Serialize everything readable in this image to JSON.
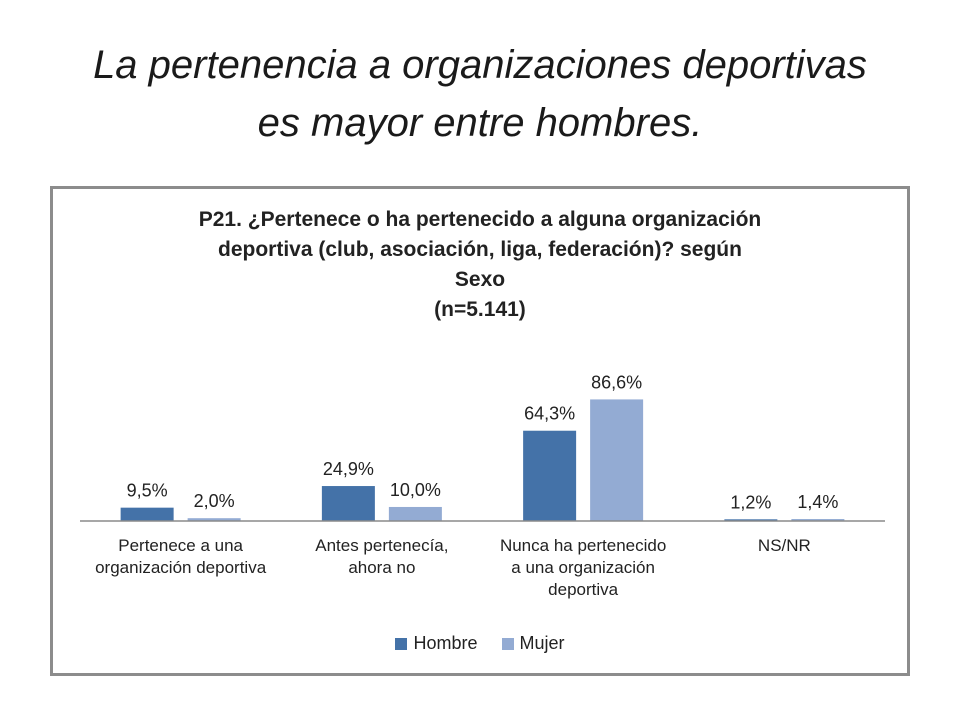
{
  "slide": {
    "title_line1": "La pertenencia a organizaciones deportivas",
    "title_line2": "es mayor entre hombres."
  },
  "chart_data": {
    "type": "bar",
    "title_lines": [
      "P21. ¿Pertenece o ha pertenecido a alguna organización",
      "deportiva (club, asociación, liga, federación)? según",
      "Sexo",
      "(n=5.141)"
    ],
    "categories": [
      [
        "Pertenece a una",
        "organización deportiva"
      ],
      [
        "Antes pertenecía,",
        "ahora no"
      ],
      [
        "Nunca ha pertenecido",
        "a una organización",
        "deportiva"
      ],
      [
        "NS/NR"
      ]
    ],
    "series": [
      {
        "name": "Hombre",
        "color": "#4472a8",
        "values": [
          9.5,
          24.9,
          64.3,
          1.2
        ],
        "labels": [
          "9,5%",
          "24,9%",
          "64,3%",
          "1,2%"
        ]
      },
      {
        "name": "Mujer",
        "color": "#93abd3",
        "values": [
          2.0,
          10.0,
          86.6,
          1.4
        ],
        "labels": [
          "2,0%",
          "10,0%",
          "86,6%",
          "1,4%"
        ]
      }
    ],
    "ylim": [
      0,
      100
    ],
    "grid": false,
    "legend_position": "bottom",
    "xlabel": "",
    "ylabel": ""
  }
}
